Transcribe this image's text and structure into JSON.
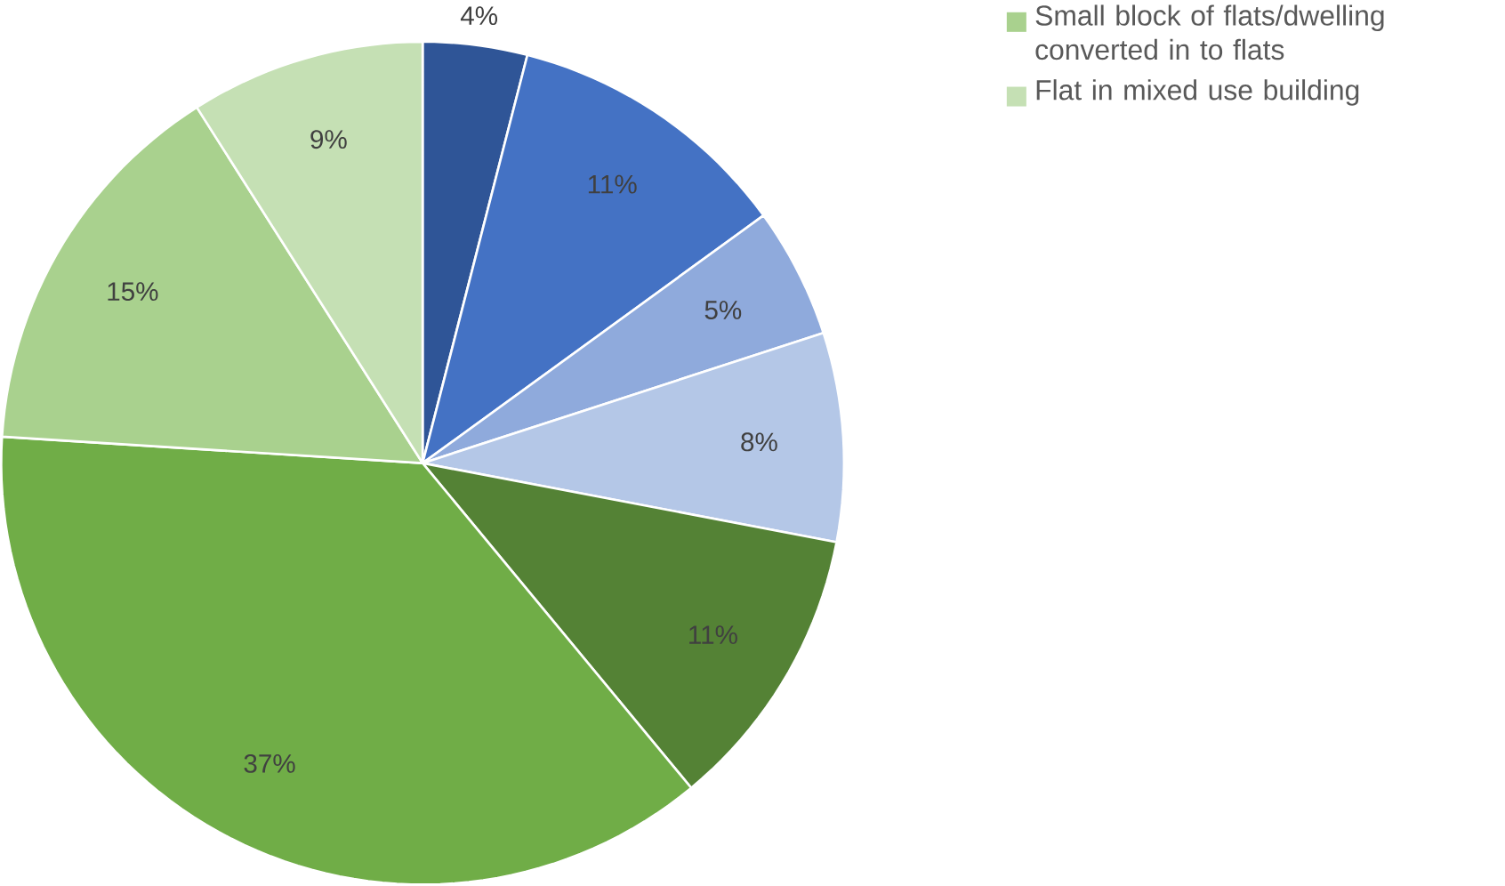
{
  "chart_data": {
    "type": "pie",
    "categories": [
      null,
      null,
      null,
      null,
      null,
      null,
      "Small block of flats/dwelling converted in to flats",
      "Flat in mixed use building"
    ],
    "values": [
      4,
      11,
      5,
      8,
      11,
      37,
      15,
      9
    ],
    "colors": [
      "#2f5597",
      "#4472c4",
      "#8faadc",
      "#b4c7e7",
      "#548235",
      "#70ad47",
      "#a9d18e",
      "#c5e0b4"
    ],
    "value_labels": [
      "4%",
      "11%",
      "5%",
      "8%",
      "11%",
      "37%",
      "15%",
      "9%"
    ],
    "legend": "top right"
  }
}
